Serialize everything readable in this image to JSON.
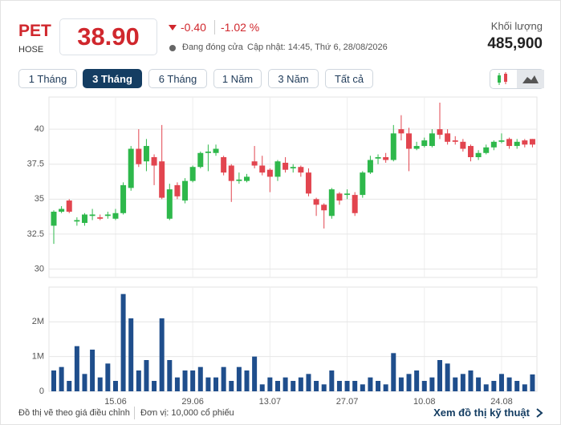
{
  "header": {
    "ticker": "PET",
    "exchange": "HOSE",
    "price": "38.90",
    "change": "-0.40",
    "change_pct": "-1.02 %",
    "status": "Đang đóng cửa",
    "updated": "Cập nhật: 14:45, Thứ 6, 28/08/2026",
    "volume_label": "Khối lượng",
    "volume": "485,900"
  },
  "tabs": [
    "1 Tháng",
    "3 Tháng",
    "6 Tháng",
    "1 Năm",
    "3 Năm",
    "Tất cả"
  ],
  "footer": {
    "note": "Đồ thị vẽ theo giá điều chỉnh",
    "unit": "Đơn vị: 10,000 cổ phiếu",
    "link": "Xem đồ thị kỹ thuật"
  },
  "chart_data": [
    {
      "type": "candlestick",
      "up_color": "#2eb84b",
      "down_color": "#e2454f",
      "grid": true,
      "ylim": [
        29.4,
        42.3
      ],
      "yticks": [
        30,
        32.5,
        35,
        37.5,
        40
      ],
      "open": [
        33.1,
        34.1,
        34.9,
        33.4,
        33.3,
        33.8,
        33.7,
        33.8,
        33.6,
        34.0,
        35.8,
        38.6,
        37.7,
        38.0,
        37.7,
        33.6,
        36.0,
        34.9,
        36.3,
        37.3,
        38.3,
        38.3,
        38.0,
        37.4,
        36.3,
        36.3,
        37.7,
        37.4,
        37.1,
        36.6,
        37.6,
        37.2,
        37.3,
        36.9,
        35.0,
        34.6,
        33.8,
        35.4,
        35.3,
        35.3,
        35.3,
        36.9,
        37.9,
        38.0,
        37.8,
        40.0,
        39.7,
        38.6,
        38.8,
        38.8,
        40.0,
        39.7,
        39.2,
        39.1,
        38.8,
        38.0,
        38.3,
        38.7,
        39.1,
        39.3,
        38.8,
        39.2,
        39.3
      ],
      "high": [
        34.2,
        34.5,
        35.0,
        33.7,
        34.0,
        34.3,
        33.9,
        34.1,
        34.3,
        36.2,
        38.8,
        40.0,
        39.3,
        38.2,
        40.3,
        36.1,
        36.2,
        36.5,
        37.4,
        38.4,
        38.9,
        38.9,
        38.1,
        37.5,
        36.9,
        36.8,
        38.8,
        38.1,
        37.2,
        37.8,
        38.0,
        37.5,
        37.4,
        37.2,
        35.1,
        34.7,
        35.8,
        35.5,
        35.7,
        35.5,
        37.0,
        38.1,
        38.2,
        38.3,
        40.3,
        41.0,
        40.1,
        39.1,
        39.4,
        40.0,
        41.9,
        40.0,
        39.5,
        39.3,
        38.9,
        38.5,
        38.9,
        39.2,
        39.7,
        39.4,
        39.3,
        39.3,
        39.3
      ],
      "low": [
        31.8,
        34.0,
        34.0,
        33.1,
        33.1,
        33.5,
        33.5,
        33.6,
        33.5,
        33.9,
        35.6,
        37.3,
        37.0,
        36.0,
        35.0,
        33.5,
        35.0,
        34.7,
        36.2,
        37.2,
        37.0,
        38.1,
        36.7,
        34.8,
        36.1,
        36.2,
        37.2,
        36.7,
        35.5,
        36.3,
        36.9,
        36.9,
        36.6,
        35.2,
        33.8,
        32.9,
        33.6,
        34.6,
        35.0,
        33.8,
        35.1,
        36.8,
        37.5,
        37.6,
        37.7,
        39.2,
        37.0,
        38.5,
        38.7,
        38.7,
        39.3,
        38.9,
        38.9,
        38.4,
        37.7,
        37.8,
        38.2,
        38.5,
        39.0,
        38.6,
        38.6,
        38.7,
        38.7
      ],
      "close": [
        34.1,
        34.3,
        34.1,
        33.5,
        33.9,
        33.9,
        33.6,
        33.9,
        34.0,
        36.0,
        38.6,
        37.5,
        38.8,
        37.4,
        35.1,
        35.7,
        35.2,
        36.3,
        37.3,
        38.3,
        38.4,
        38.6,
        36.9,
        36.3,
        36.4,
        36.6,
        37.4,
        36.9,
        36.6,
        37.7,
        37.1,
        37.3,
        36.9,
        35.4,
        34.6,
        34.2,
        35.7,
        34.9,
        35.4,
        34.0,
        36.9,
        37.8,
        38.0,
        37.8,
        39.7,
        39.7,
        38.6,
        38.8,
        39.2,
        39.7,
        39.6,
        39.1,
        39.1,
        38.6,
        38.0,
        38.3,
        38.7,
        39.1,
        39.2,
        38.8,
        39.1,
        38.9,
        38.9
      ]
    },
    {
      "type": "bar",
      "color": "#1f4e8c",
      "ylim": [
        0,
        3000000
      ],
      "yticks": [
        0,
        {
          "value": 1000000,
          "label": "1M"
        },
        {
          "value": 2000000,
          "label": "2M"
        }
      ],
      "categories": [
        null,
        null,
        null,
        null,
        null,
        null,
        null,
        null,
        "15.06",
        null,
        null,
        null,
        null,
        null,
        null,
        null,
        null,
        null,
        "29.06",
        null,
        null,
        null,
        null,
        null,
        null,
        null,
        null,
        null,
        "13.07",
        null,
        null,
        null,
        null,
        null,
        null,
        null,
        null,
        null,
        "27.07",
        null,
        null,
        null,
        null,
        null,
        null,
        null,
        null,
        null,
        "10.08",
        null,
        null,
        null,
        null,
        null,
        null,
        null,
        null,
        null,
        "24.08",
        null,
        null,
        null,
        null
      ],
      "values": [
        600000,
        700000,
        300000,
        1300000,
        500000,
        1200000,
        400000,
        800000,
        300000,
        2800000,
        2100000,
        600000,
        900000,
        300000,
        2100000,
        900000,
        400000,
        600000,
        600000,
        700000,
        400000,
        400000,
        700000,
        300000,
        700000,
        600000,
        1000000,
        200000,
        400000,
        300000,
        400000,
        300000,
        400000,
        500000,
        300000,
        200000,
        600000,
        300000,
        300000,
        300000,
        200000,
        400000,
        300000,
        200000,
        1100000,
        400000,
        500000,
        600000,
        300000,
        400000,
        900000,
        800000,
        400000,
        500000,
        600000,
        400000,
        200000,
        300000,
        500000,
        400000,
        300000,
        200000,
        485900
      ]
    }
  ]
}
